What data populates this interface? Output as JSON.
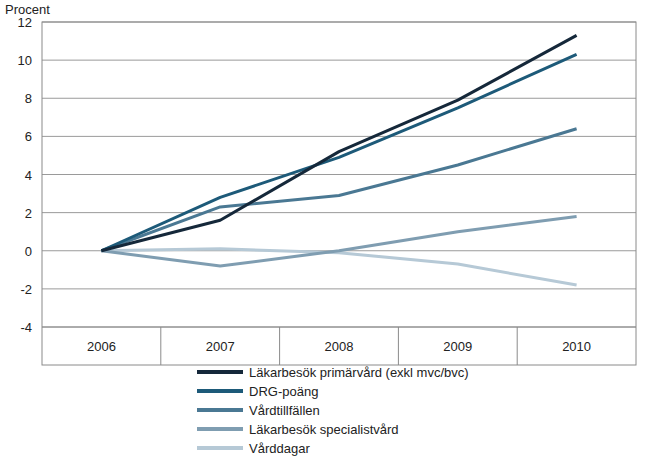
{
  "chart_data": {
    "type": "line",
    "y_label": "Procent",
    "categories": [
      "2006",
      "2007",
      "2008",
      "2009",
      "2010"
    ],
    "ylim": [
      -4,
      12
    ],
    "yticks": [
      -4,
      -2,
      0,
      2,
      4,
      6,
      8,
      10,
      12
    ],
    "grid": true,
    "legend": "bottom",
    "series": [
      {
        "name": "Läkarbesök primärvård (exkl mvc/bvc)",
        "color": "#15283a",
        "values": [
          0,
          1.6,
          5.2,
          7.9,
          11.3
        ]
      },
      {
        "name": "DRG-poäng",
        "color": "#1d5a79",
        "values": [
          0,
          2.8,
          4.9,
          7.5,
          10.3
        ]
      },
      {
        "name": "Vårdtillfällen",
        "color": "#4a7893",
        "values": [
          0,
          2.3,
          2.9,
          4.5,
          6.4
        ]
      },
      {
        "name": "Läkarbesök specialistvård",
        "color": "#7f9db1",
        "values": [
          0,
          -0.8,
          0,
          1.0,
          1.8
        ]
      },
      {
        "name": "Vårddagar",
        "color": "#b6c9d6",
        "values": [
          0,
          0.1,
          -0.1,
          -0.7,
          -1.8
        ]
      }
    ]
  }
}
